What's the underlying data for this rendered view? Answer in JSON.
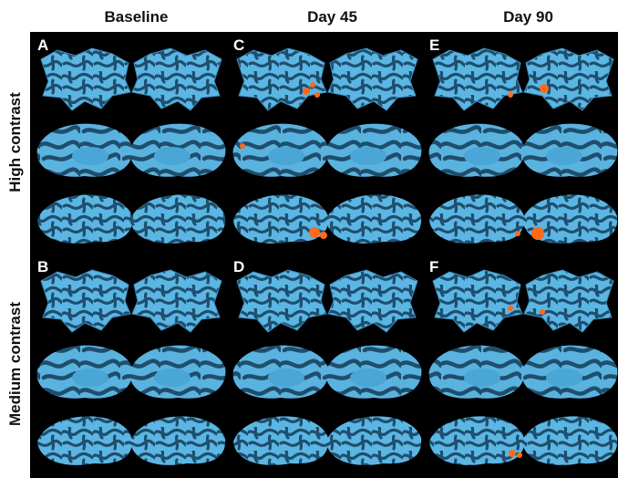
{
  "header": {
    "columns": [
      "Baseline",
      "Day 45",
      "Day 90"
    ]
  },
  "rows": [
    "High contrast",
    "Medium contrast"
  ],
  "panels": [
    [
      "A",
      "C",
      "E"
    ],
    [
      "B",
      "D",
      "F"
    ]
  ]
}
